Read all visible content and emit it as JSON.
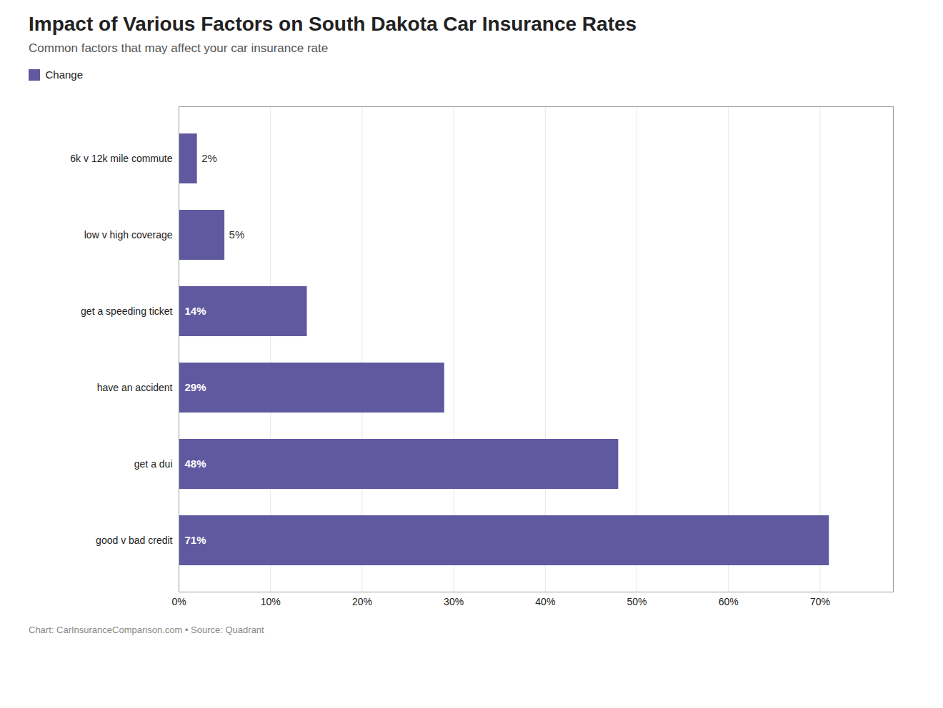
{
  "chart_data": {
    "type": "bar",
    "orientation": "horizontal",
    "title": "Impact of Various Factors on South Dakota Car Insurance Rates",
    "subtitle": "Common factors that may affect your car insurance rate",
    "caption": "Chart: CarInsuranceComparison.com • Source: Quadrant",
    "categories": [
      "6k v 12k mile commute",
      "low v high coverage",
      "get a speeding ticket",
      "have an accident",
      "get a dui",
      "good v bad credit"
    ],
    "series": [
      {
        "name": "Change",
        "color": "#6059a0",
        "values": [
          2,
          5,
          14,
          29,
          48,
          71
        ],
        "value_labels": [
          "2%",
          "5%",
          "14%",
          "29%",
          "48%",
          "71%"
        ]
      }
    ],
    "xlim": [
      0,
      78
    ],
    "xticks": [
      {
        "value": 0,
        "label": "0%"
      },
      {
        "value": 10,
        "label": "10%"
      },
      {
        "value": 20,
        "label": "20%"
      },
      {
        "value": 30,
        "label": "30%"
      },
      {
        "value": 40,
        "label": "40%"
      },
      {
        "value": 50,
        "label": "50%"
      },
      {
        "value": 60,
        "label": "60%"
      },
      {
        "value": 70,
        "label": "70%"
      }
    ],
    "grid": true,
    "legend": "upper left",
    "data_labels": true
  }
}
